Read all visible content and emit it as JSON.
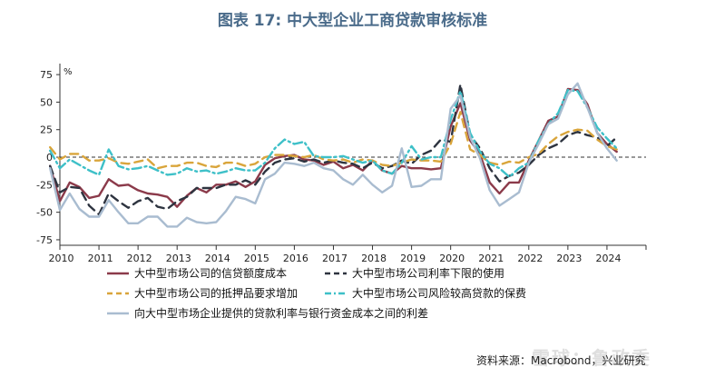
{
  "title": "图表 17: 中大型企业工商贷款审核标准",
  "title_color": "#4a6b8a",
  "source": "资料来源：Macrobond，兴业研究",
  "watermark": "雪球：鲁政委",
  "chart_data": {
    "type": "line",
    "y_unit": "%",
    "ylim": [
      -80,
      85
    ],
    "yticks": [
      -75,
      -50,
      -25,
      0,
      25,
      50,
      75
    ],
    "x_tick_labels": [
      "2010",
      "2011",
      "2012",
      "2013",
      "2014",
      "2015",
      "2016",
      "2017",
      "2018",
      "2019",
      "2020",
      "2021",
      "2022",
      "2023",
      "2024"
    ],
    "xlim": [
      2010.0,
      2025.0
    ],
    "zero_line": true,
    "grid": false,
    "legend_position": "bottom",
    "series": [
      {
        "name": "大中型市场公司的信贷额度成本",
        "color": "#8b3a4a",
        "style": "solid",
        "width": 2.4,
        "points": [
          [
            2009.75,
            -8
          ],
          [
            2010.0,
            -40
          ],
          [
            2010.25,
            -23
          ],
          [
            2010.5,
            -27
          ],
          [
            2010.75,
            -37
          ],
          [
            2011.0,
            -35
          ],
          [
            2011.25,
            -20
          ],
          [
            2011.5,
            -26
          ],
          [
            2011.75,
            -25
          ],
          [
            2012.0,
            -30
          ],
          [
            2012.25,
            -33
          ],
          [
            2012.5,
            -34
          ],
          [
            2012.75,
            -36
          ],
          [
            2013.0,
            -45
          ],
          [
            2013.25,
            -35
          ],
          [
            2013.5,
            -28
          ],
          [
            2013.75,
            -32
          ],
          [
            2014.0,
            -25
          ],
          [
            2014.25,
            -25
          ],
          [
            2014.5,
            -22
          ],
          [
            2014.75,
            -27
          ],
          [
            2015.0,
            -22
          ],
          [
            2015.25,
            -7
          ],
          [
            2015.5,
            -1
          ],
          [
            2015.75,
            1
          ],
          [
            2016.0,
            2
          ],
          [
            2016.25,
            -2
          ],
          [
            2016.5,
            -3
          ],
          [
            2016.75,
            -7
          ],
          [
            2017.0,
            -4
          ],
          [
            2017.25,
            -10
          ],
          [
            2017.5,
            -7
          ],
          [
            2017.75,
            -12
          ],
          [
            2018.0,
            -3
          ],
          [
            2018.25,
            -12
          ],
          [
            2018.5,
            -15
          ],
          [
            2018.75,
            -8
          ],
          [
            2019.0,
            -10
          ],
          [
            2019.25,
            -10
          ],
          [
            2019.5,
            -11
          ],
          [
            2019.75,
            -10
          ],
          [
            2020.0,
            28
          ],
          [
            2020.25,
            49
          ],
          [
            2020.5,
            15
          ],
          [
            2020.75,
            3
          ],
          [
            2021.0,
            -23
          ],
          [
            2021.25,
            -33
          ],
          [
            2021.5,
            -23
          ],
          [
            2021.75,
            -23
          ],
          [
            2022.0,
            -3
          ],
          [
            2022.25,
            15
          ],
          [
            2022.5,
            33
          ],
          [
            2022.75,
            37
          ],
          [
            2023.0,
            62
          ],
          [
            2023.25,
            61
          ],
          [
            2023.5,
            48
          ],
          [
            2023.75,
            22
          ],
          [
            2024.0,
            12
          ],
          [
            2024.25,
            5
          ]
        ]
      },
      {
        "name": "大中型市场公司利率下限的使用",
        "color": "#2e3440",
        "style": "dashed",
        "width": 2.4,
        "points": [
          [
            2009.75,
            -8
          ],
          [
            2010.0,
            -32
          ],
          [
            2010.25,
            -27
          ],
          [
            2010.5,
            -28
          ],
          [
            2010.75,
            -44
          ],
          [
            2011.0,
            -52
          ],
          [
            2011.25,
            -33
          ],
          [
            2011.5,
            -40
          ],
          [
            2011.75,
            -46
          ],
          [
            2012.0,
            -40
          ],
          [
            2012.25,
            -37
          ],
          [
            2012.5,
            -45
          ],
          [
            2012.75,
            -47
          ],
          [
            2013.0,
            -40
          ],
          [
            2013.25,
            -36
          ],
          [
            2013.5,
            -28
          ],
          [
            2013.75,
            -28
          ],
          [
            2014.0,
            -28
          ],
          [
            2014.25,
            -25
          ],
          [
            2014.5,
            -25
          ],
          [
            2014.75,
            -21
          ],
          [
            2015.0,
            -25
          ],
          [
            2015.25,
            -13
          ],
          [
            2015.5,
            -5
          ],
          [
            2015.75,
            -2
          ],
          [
            2016.0,
            -1
          ],
          [
            2016.25,
            -4
          ],
          [
            2016.5,
            -2
          ],
          [
            2016.75,
            -5
          ],
          [
            2017.0,
            -3
          ],
          [
            2017.25,
            -5
          ],
          [
            2017.5,
            -6
          ],
          [
            2017.75,
            -10
          ],
          [
            2018.0,
            -5
          ],
          [
            2018.25,
            -10
          ],
          [
            2018.5,
            -8
          ],
          [
            2018.75,
            -3
          ],
          [
            2019.0,
            -6
          ],
          [
            2019.25,
            2
          ],
          [
            2019.5,
            6
          ],
          [
            2019.75,
            16
          ],
          [
            2020.0,
            14
          ],
          [
            2020.25,
            66
          ],
          [
            2020.5,
            20
          ],
          [
            2020.75,
            8
          ],
          [
            2021.0,
            -10
          ],
          [
            2021.25,
            -22
          ],
          [
            2021.5,
            -17
          ],
          [
            2021.75,
            -14
          ],
          [
            2022.0,
            -7
          ],
          [
            2022.25,
            2
          ],
          [
            2022.5,
            8
          ],
          [
            2022.75,
            12
          ],
          [
            2023.0,
            20
          ],
          [
            2023.25,
            23
          ],
          [
            2023.5,
            20
          ],
          [
            2023.75,
            18
          ],
          [
            2024.0,
            10
          ],
          [
            2024.25,
            18
          ]
        ]
      },
      {
        "name": "大中型市场公司的抵押品要求增加",
        "color": "#d9a53b",
        "style": "dashed",
        "width": 2.4,
        "points": [
          [
            2009.75,
            9
          ],
          [
            2010.0,
            -2
          ],
          [
            2010.25,
            3
          ],
          [
            2010.5,
            3
          ],
          [
            2010.75,
            -3
          ],
          [
            2011.0,
            -3
          ],
          [
            2011.25,
            -1
          ],
          [
            2011.5,
            -5
          ],
          [
            2011.75,
            -6
          ],
          [
            2012.0,
            -4
          ],
          [
            2012.25,
            -2
          ],
          [
            2012.5,
            -10
          ],
          [
            2012.75,
            -8
          ],
          [
            2013.0,
            -8
          ],
          [
            2013.25,
            -5
          ],
          [
            2013.5,
            -5
          ],
          [
            2013.75,
            -8
          ],
          [
            2014.0,
            -9
          ],
          [
            2014.25,
            -5
          ],
          [
            2014.5,
            -5
          ],
          [
            2014.75,
            -8
          ],
          [
            2015.0,
            -6
          ],
          [
            2015.25,
            0
          ],
          [
            2015.5,
            2
          ],
          [
            2015.75,
            2
          ],
          [
            2016.0,
            1
          ],
          [
            2016.25,
            0
          ],
          [
            2016.5,
            2
          ],
          [
            2016.75,
            -2
          ],
          [
            2017.0,
            -3
          ],
          [
            2017.25,
            -2
          ],
          [
            2017.5,
            -5
          ],
          [
            2017.75,
            -2
          ],
          [
            2018.0,
            -3
          ],
          [
            2018.25,
            -7
          ],
          [
            2018.5,
            -8
          ],
          [
            2018.75,
            -5
          ],
          [
            2019.0,
            -2
          ],
          [
            2019.25,
            -3
          ],
          [
            2019.5,
            -3
          ],
          [
            2019.75,
            -4
          ],
          [
            2020.0,
            12
          ],
          [
            2020.25,
            41
          ],
          [
            2020.5,
            7
          ],
          [
            2020.75,
            2
          ],
          [
            2021.0,
            -5
          ],
          [
            2021.25,
            -7
          ],
          [
            2021.5,
            -4
          ],
          [
            2021.75,
            -5
          ],
          [
            2022.0,
            0
          ],
          [
            2022.25,
            3
          ],
          [
            2022.5,
            12
          ],
          [
            2022.75,
            19
          ],
          [
            2023.0,
            23
          ],
          [
            2023.25,
            25
          ],
          [
            2023.5,
            24
          ],
          [
            2023.75,
            16
          ],
          [
            2024.0,
            10
          ],
          [
            2024.25,
            7
          ]
        ]
      },
      {
        "name": "大中型市场公司风险较高贷款的保费",
        "color": "#3ec0c8",
        "style": "dashdot",
        "width": 2.4,
        "points": [
          [
            2009.75,
            6
          ],
          [
            2010.0,
            -10
          ],
          [
            2010.25,
            -2
          ],
          [
            2010.5,
            -7
          ],
          [
            2010.75,
            -12
          ],
          [
            2011.0,
            -16
          ],
          [
            2011.25,
            7
          ],
          [
            2011.5,
            -8
          ],
          [
            2011.75,
            -11
          ],
          [
            2012.0,
            -10
          ],
          [
            2012.25,
            -8
          ],
          [
            2012.5,
            -12
          ],
          [
            2012.75,
            -16
          ],
          [
            2013.0,
            -15
          ],
          [
            2013.25,
            -10
          ],
          [
            2013.5,
            -13
          ],
          [
            2013.75,
            -12
          ],
          [
            2014.0,
            -15
          ],
          [
            2014.25,
            -13
          ],
          [
            2014.5,
            -10
          ],
          [
            2014.75,
            -12
          ],
          [
            2015.0,
            -12
          ],
          [
            2015.25,
            -5
          ],
          [
            2015.5,
            8
          ],
          [
            2015.75,
            16
          ],
          [
            2016.0,
            12
          ],
          [
            2016.25,
            14
          ],
          [
            2016.5,
            1
          ],
          [
            2016.75,
            0
          ],
          [
            2017.0,
            0
          ],
          [
            2017.25,
            1
          ],
          [
            2017.5,
            -2
          ],
          [
            2017.75,
            -5
          ],
          [
            2018.0,
            -3
          ],
          [
            2018.25,
            -12
          ],
          [
            2018.5,
            -15
          ],
          [
            2018.75,
            -5
          ],
          [
            2019.0,
            10
          ],
          [
            2019.25,
            -2
          ],
          [
            2019.5,
            0
          ],
          [
            2019.75,
            0
          ],
          [
            2020.0,
            34
          ],
          [
            2020.25,
            60
          ],
          [
            2020.5,
            22
          ],
          [
            2020.75,
            5
          ],
          [
            2021.0,
            -6
          ],
          [
            2021.25,
            -10
          ],
          [
            2021.5,
            -18
          ],
          [
            2021.75,
            -10
          ],
          [
            2022.0,
            -5
          ],
          [
            2022.25,
            15
          ],
          [
            2022.5,
            30
          ],
          [
            2022.75,
            40
          ],
          [
            2023.0,
            61
          ],
          [
            2023.25,
            60
          ],
          [
            2023.5,
            45
          ],
          [
            2023.75,
            27
          ],
          [
            2024.0,
            17
          ],
          [
            2024.25,
            8
          ]
        ]
      },
      {
        "name": "向大中型市场企业提供的贷款利率与银行资金成本之间的利差",
        "color": "#a9bcd0",
        "style": "solid",
        "width": 2.4,
        "points": [
          [
            2009.75,
            -10
          ],
          [
            2010.0,
            -48
          ],
          [
            2010.25,
            -33
          ],
          [
            2010.5,
            -47
          ],
          [
            2010.75,
            -54
          ],
          [
            2011.0,
            -54
          ],
          [
            2011.25,
            -39
          ],
          [
            2011.5,
            -50
          ],
          [
            2011.75,
            -60
          ],
          [
            2012.0,
            -60
          ],
          [
            2012.25,
            -54
          ],
          [
            2012.5,
            -54
          ],
          [
            2012.75,
            -63
          ],
          [
            2013.0,
            -63
          ],
          [
            2013.25,
            -55
          ],
          [
            2013.5,
            -59
          ],
          [
            2013.75,
            -60
          ],
          [
            2014.0,
            -59
          ],
          [
            2014.25,
            -49
          ],
          [
            2014.5,
            -36
          ],
          [
            2014.75,
            -38
          ],
          [
            2015.0,
            -42
          ],
          [
            2015.25,
            -20
          ],
          [
            2015.5,
            -15
          ],
          [
            2015.75,
            -5
          ],
          [
            2016.0,
            -6
          ],
          [
            2016.25,
            -8
          ],
          [
            2016.5,
            -5
          ],
          [
            2016.75,
            -10
          ],
          [
            2017.0,
            -12
          ],
          [
            2017.25,
            -20
          ],
          [
            2017.5,
            -25
          ],
          [
            2017.75,
            -16
          ],
          [
            2018.0,
            -25
          ],
          [
            2018.25,
            -32
          ],
          [
            2018.5,
            -26
          ],
          [
            2018.75,
            8
          ],
          [
            2019.0,
            -27
          ],
          [
            2019.25,
            -26
          ],
          [
            2019.5,
            -20
          ],
          [
            2019.75,
            -20
          ],
          [
            2020.0,
            44
          ],
          [
            2020.25,
            56
          ],
          [
            2020.5,
            18
          ],
          [
            2020.75,
            -1
          ],
          [
            2021.0,
            -30
          ],
          [
            2021.25,
            -44
          ],
          [
            2021.5,
            -38
          ],
          [
            2021.75,
            -32
          ],
          [
            2022.0,
            -5
          ],
          [
            2022.25,
            12
          ],
          [
            2022.5,
            30
          ],
          [
            2022.75,
            35
          ],
          [
            2023.0,
            57
          ],
          [
            2023.25,
            67
          ],
          [
            2023.5,
            45
          ],
          [
            2023.75,
            22
          ],
          [
            2024.0,
            8
          ],
          [
            2024.25,
            -3
          ]
        ]
      }
    ]
  }
}
